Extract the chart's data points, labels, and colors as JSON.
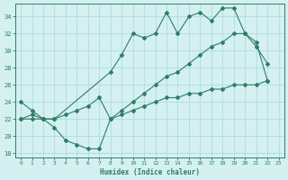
{
  "line1_x": [
    0,
    1,
    2,
    3,
    8,
    9,
    10,
    11,
    12,
    13,
    14,
    15,
    16,
    17,
    18,
    19,
    20,
    21,
    22
  ],
  "line1_y": [
    24,
    23,
    22,
    22,
    27.5,
    29.5,
    32,
    31.5,
    32,
    34.5,
    32,
    34,
    34.5,
    33.5,
    35,
    35,
    32,
    30.5,
    28.5
  ],
  "line2_x": [
    0,
    1,
    2,
    3,
    4,
    5,
    6,
    7,
    8,
    9,
    10,
    11,
    12,
    13,
    14,
    15,
    16,
    17,
    18,
    19,
    20,
    21,
    22
  ],
  "line2_y": [
    22,
    22,
    22,
    22,
    22.5,
    23,
    23.5,
    24.5,
    22,
    23,
    24,
    25,
    26,
    27,
    27.5,
    28.5,
    29.5,
    30.5,
    31,
    32,
    32,
    31,
    26.5
  ],
  "line3_x": [
    0,
    1,
    2,
    3,
    4,
    5,
    6,
    7,
    8,
    9,
    10,
    11,
    12,
    13,
    14,
    15,
    16,
    17,
    18,
    19,
    20,
    21,
    22
  ],
  "line3_y": [
    22,
    22.5,
    22,
    21,
    19.5,
    19,
    18.5,
    18.5,
    22,
    22.5,
    23,
    23.5,
    24,
    24.5,
    24.5,
    25,
    25,
    25.5,
    25.5,
    26,
    26,
    26,
    26.5
  ],
  "color": "#2e7d6b",
  "bg_color": "#d4f0f0",
  "grid_color": "#a8d8d8",
  "xlabel": "Humidex (Indice chaleur)",
  "xlim": [
    -0.5,
    23.5
  ],
  "ylim": [
    17.5,
    35.5
  ],
  "yticks": [
    18,
    20,
    22,
    24,
    26,
    28,
    30,
    32,
    34
  ],
  "xticks": [
    0,
    1,
    2,
    3,
    4,
    5,
    6,
    7,
    8,
    9,
    10,
    11,
    12,
    13,
    14,
    15,
    16,
    17,
    18,
    19,
    20,
    21,
    22,
    23
  ]
}
